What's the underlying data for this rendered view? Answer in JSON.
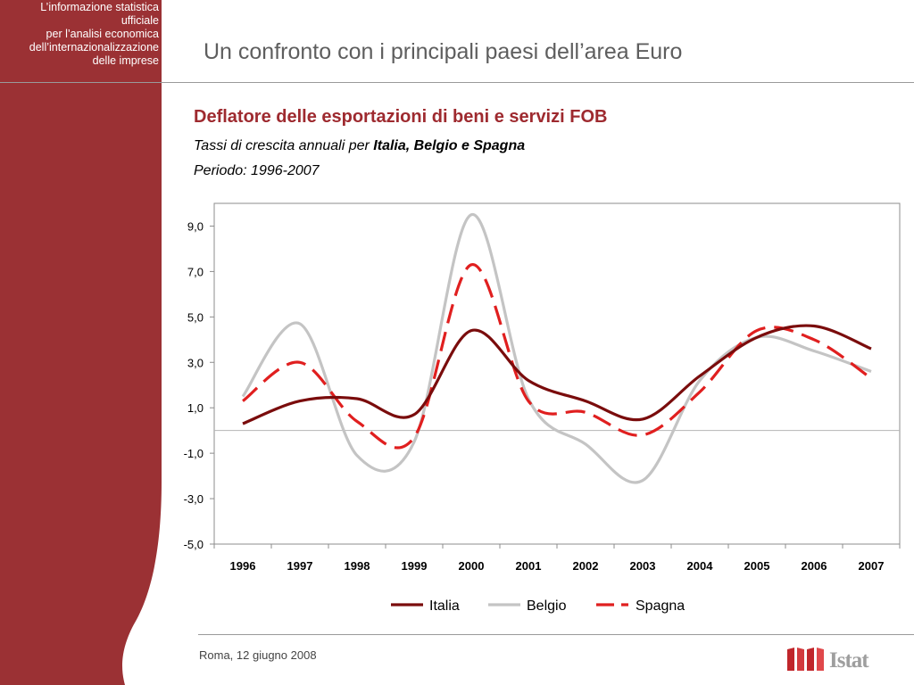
{
  "header": {
    "org_lines": [
      "L’informazione statistica",
      "ufficiale",
      "per l’analisi economica",
      "dell’internazionalizzazione",
      "delle imprese"
    ],
    "title": "Un confronto con i principali paesi dell’area Euro"
  },
  "chart_header": {
    "title": "Deflatore delle esportazioni di beni e servizi FOB",
    "subtitle_prefix": "Tassi di crescita annuali per ",
    "subtitle_bold": "Italia, Belgio e Spagna",
    "period": "Periodo: 1996-2007"
  },
  "footer": {
    "date": "Roma, 12 giugno 2008",
    "logo_text": "Istat"
  },
  "colors": {
    "brand": "#9b3134",
    "italia": "#7a0c0c",
    "belgio": "#c4c4c4",
    "spagna": "#e01f1f"
  },
  "chart_data": {
    "type": "line",
    "categories": [
      "1996",
      "1997",
      "1998",
      "1999",
      "2000",
      "2001",
      "2002",
      "2003",
      "2004",
      "2005",
      "2006",
      "2007"
    ],
    "y_ticks": [
      "9,0",
      "7,0",
      "5,0",
      "3,0",
      "1,0",
      "-1,0",
      "-3,0",
      "-5,0"
    ],
    "ylim": [
      -5,
      10
    ],
    "series": [
      {
        "name": "Italia",
        "values": [
          0.3,
          1.3,
          1.4,
          0.7,
          4.4,
          2.2,
          1.3,
          0.5,
          2.4,
          4.1,
          4.6,
          3.6
        ]
      },
      {
        "name": "Belgio",
        "values": [
          1.5,
          4.7,
          -1.1,
          -0.5,
          9.5,
          1.4,
          -0.6,
          -2.2,
          2.2,
          4.1,
          3.5,
          2.6
        ]
      },
      {
        "name": "Spagna",
        "values": [
          1.3,
          3.0,
          0.4,
          -0.3,
          7.3,
          1.3,
          0.8,
          -0.2,
          1.7,
          4.4,
          4.0,
          2.3
        ]
      }
    ],
    "legend_position": "bottom",
    "grid": false
  }
}
